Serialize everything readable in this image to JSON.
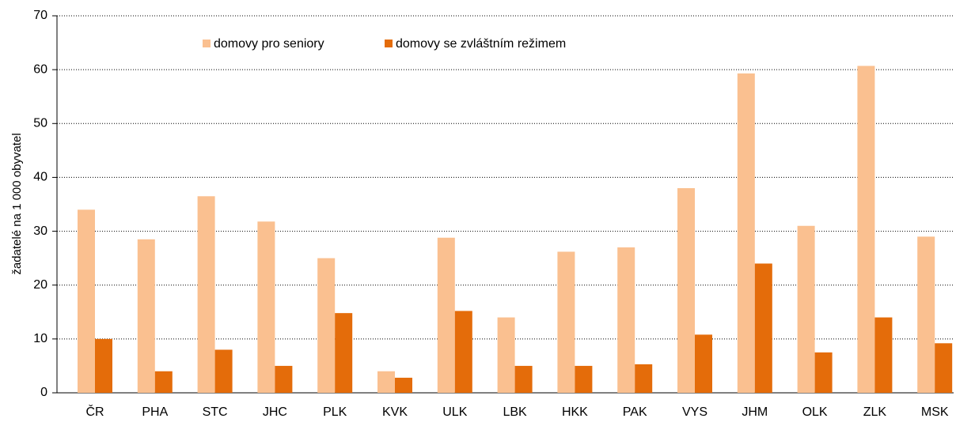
{
  "chart_data": {
    "type": "bar",
    "ylabel": "žadatelé na 1 000 obyvatel",
    "categories": [
      "ČR",
      "PHA",
      "STC",
      "JHC",
      "PLK",
      "KVK",
      "ULK",
      "LBK",
      "HKK",
      "PAK",
      "VYS",
      "JHM",
      "OLK",
      "ZLK",
      "MSK"
    ],
    "series": [
      {
        "name": "domovy pro seniory",
        "color": "#fac090",
        "values": [
          34,
          28.5,
          36.5,
          31.8,
          25,
          4,
          28.8,
          14,
          26.2,
          27,
          38,
          59.3,
          31,
          60.7,
          29
        ]
      },
      {
        "name": "domovy se zvláštním režimem",
        "color": "#e46c0a",
        "values": [
          10,
          4,
          8,
          5,
          14.8,
          2.8,
          15.2,
          5,
          5,
          5.3,
          10.8,
          24,
          7.5,
          14,
          9.2
        ]
      }
    ],
    "ylim": [
      0,
      70
    ],
    "yticks": [
      0,
      10,
      20,
      30,
      40,
      50,
      60,
      70
    ],
    "grid": true,
    "legend": "top-left"
  }
}
